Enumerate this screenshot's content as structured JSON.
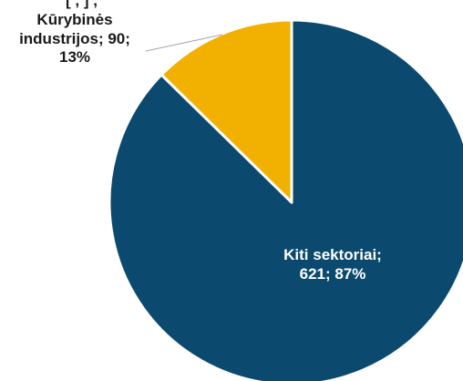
{
  "chart_data": {
    "type": "pie",
    "slices": [
      {
        "name": "Kitis sektoriai",
        "label": "Kiti sektoriai;",
        "value": 621,
        "percent": "87%",
        "color": "#0b4a6e"
      },
      {
        "name": "Kūrybinės industrijos",
        "label": "Kūrybinės industrijos;",
        "value": 90,
        "percent": "13%",
        "color": "#f2b100"
      }
    ],
    "labels": {
      "creative_line1": "Kūrybinės",
      "creative_line2": "industrijos; 90;",
      "creative_line3": "13%",
      "other_line1": "Kiti sektoriai;",
      "other_line2": "621; 87%"
    },
    "clipped_header": "[ , ] ,"
  }
}
